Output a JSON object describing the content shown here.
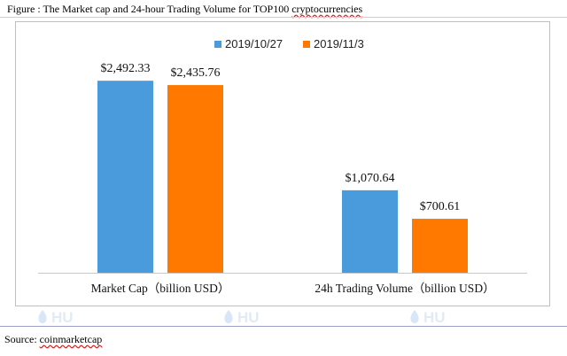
{
  "figure": {
    "title_prefix": "Figure : The Market cap and 24-hour Trading Volume for TOP100 ",
    "title_underlined": "cryptocurrencies",
    "source_prefix": "Source: ",
    "source_underlined": "coinmarketcap",
    "watermark_text": "HU"
  },
  "chart_data": {
    "type": "bar",
    "categories": [
      "Market Cap（billion USD）",
      "24h Trading Volume（billion USD）"
    ],
    "series": [
      {
        "name": "2019/10/27",
        "values": [
          2492.33,
          1070.64
        ],
        "labels": [
          "$2,492.33",
          "$1,070.64"
        ],
        "color": "#4a9bdc"
      },
      {
        "name": "2019/11/3",
        "values": [
          2435.76,
          700.61
        ],
        "labels": [
          "$2,435.76",
          "$700.61"
        ],
        "color": "#ff7800"
      }
    ],
    "ylim": [
      0,
      3000
    ],
    "grid": false,
    "legend": "top-center",
    "axis_color": "#c8c8c8"
  }
}
